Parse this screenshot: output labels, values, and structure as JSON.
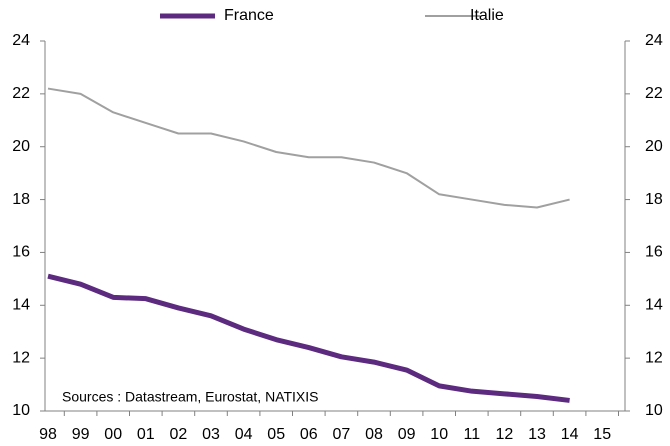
{
  "chart_data": {
    "type": "line",
    "categories": [
      "98",
      "99",
      "00",
      "01",
      "02",
      "03",
      "04",
      "05",
      "06",
      "07",
      "08",
      "09",
      "10",
      "11",
      "12",
      "13",
      "14",
      "15"
    ],
    "series": [
      {
        "name": "France",
        "color": "#5c2a7e",
        "width": 5,
        "values": [
          15.1,
          14.8,
          14.3,
          14.25,
          13.9,
          13.6,
          13.1,
          12.7,
          12.4,
          12.05,
          11.85,
          11.55,
          10.95,
          10.75,
          10.65,
          10.55,
          10.4,
          null
        ]
      },
      {
        "name": "Italie",
        "color": "#a0a0a0",
        "width": 2,
        "values": [
          22.2,
          22.0,
          21.3,
          20.9,
          20.5,
          20.5,
          20.2,
          19.8,
          19.6,
          19.6,
          19.4,
          19.0,
          18.2,
          18.0,
          17.8,
          17.7,
          18.0,
          null
        ]
      }
    ],
    "ylim": [
      10,
      24
    ],
    "yticks": [
      10,
      12,
      14,
      16,
      18,
      20,
      22,
      24
    ],
    "y2lim": [
      10,
      24
    ],
    "y2ticks": [
      10,
      12,
      14,
      16,
      18,
      20,
      22,
      24
    ],
    "annotation": "Sources : Datastream, Eurostat, NATIXIS",
    "grid": false,
    "legend": "top"
  }
}
